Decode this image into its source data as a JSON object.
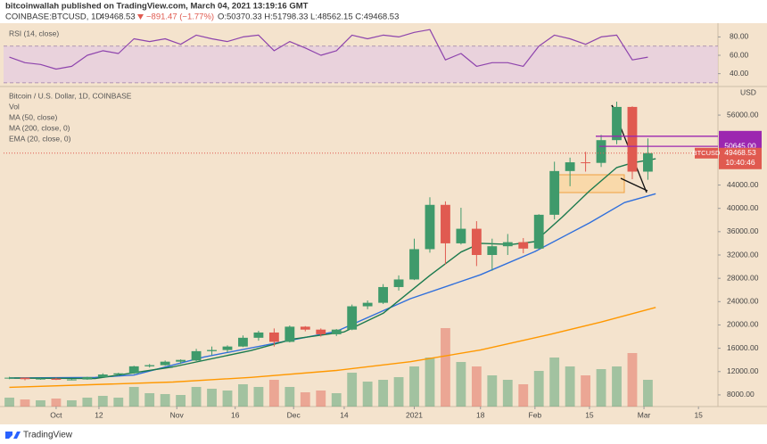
{
  "header": {
    "publisher": "bitcoinwallah published on TradingView.com, March 04, 2021 13:19:16 GMT",
    "symbol": "COINBASE:BTCUSD, 1D",
    "last": "49468.53",
    "change": "−891.47 (−1.77%)",
    "ohlc": "O:50370.33 H:51798.33 L:48562.15 C:49468.53"
  },
  "chart_data": [
    {
      "type": "line",
      "title": "RSI (14, close)",
      "color": "#8e44ad",
      "band": [
        30,
        70
      ],
      "band_color": "#e6cde0",
      "xlim": [
        -13.5,
        170
      ],
      "ylim": [
        27,
        94
      ],
      "yticks": [
        {
          "value": 80,
          "label": "80.00"
        },
        {
          "value": 60,
          "label": "60.00"
        },
        {
          "value": 40,
          "label": "40.00"
        }
      ],
      "x": [
        -12,
        -8,
        -4,
        0,
        4,
        8,
        12,
        16,
        20,
        24,
        28,
        32,
        36,
        40,
        44,
        48,
        52,
        56,
        60,
        64,
        68,
        72,
        76,
        80,
        84,
        88,
        92,
        96,
        100,
        104,
        108,
        112,
        116,
        120,
        124,
        128,
        132,
        136,
        140,
        144,
        148,
        152
      ],
      "values": [
        58,
        52,
        50,
        45,
        48,
        60,
        65,
        62,
        78,
        75,
        78,
        72,
        82,
        78,
        75,
        80,
        82,
        65,
        75,
        68,
        60,
        65,
        82,
        78,
        82,
        80,
        85,
        88,
        55,
        62,
        48,
        52,
        52,
        48,
        70,
        82,
        78,
        72,
        80,
        82,
        55,
        58
      ]
    },
    {
      "type": "candlestick",
      "title": "Bitcoin / U.S. Dollar, 1D, COINBASE",
      "unit": "USD",
      "up_color": "#3f9a6b",
      "down_color": "#e05a50",
      "volume_label": "Vol",
      "vlim": [
        0,
        100
      ],
      "xlim": [
        -13.5,
        170
      ],
      "xticks": [
        {
          "value": 0,
          "label": "Oct"
        },
        {
          "value": 11,
          "label": "12"
        },
        {
          "value": 31,
          "label": "Nov"
        },
        {
          "value": 46,
          "label": "16"
        },
        {
          "value": 61,
          "label": "Dec"
        },
        {
          "value": 74,
          "label": "14"
        },
        {
          "value": 92,
          "label": "2021"
        },
        {
          "value": 109,
          "label": "18"
        },
        {
          "value": 123,
          "label": "Feb"
        },
        {
          "value": 137,
          "label": "15"
        },
        {
          "value": 151,
          "label": "Mar"
        },
        {
          "value": 165,
          "label": "15"
        }
      ],
      "ylim": [
        6000,
        60600
      ],
      "yticks": [
        {
          "value": 8000,
          "label": "8000.00"
        },
        {
          "value": 12000,
          "label": "12000.00"
        },
        {
          "value": 16000,
          "label": "16000.00"
        },
        {
          "value": 20000,
          "label": "20000.00"
        },
        {
          "value": 24000,
          "label": "24000.00"
        },
        {
          "value": 28000,
          "label": "28000.00"
        },
        {
          "value": 32000,
          "label": "32000.00"
        },
        {
          "value": 36000,
          "label": "36000.00"
        },
        {
          "value": 40000,
          "label": "40000.00"
        },
        {
          "value": 44000,
          "label": "44000.00"
        },
        {
          "value": 56000,
          "label": "56000.00"
        }
      ],
      "x": [
        -12,
        -8,
        -4,
        0,
        4,
        8,
        12,
        16,
        20,
        24,
        28,
        32,
        36,
        40,
        44,
        48,
        52,
        56,
        60,
        64,
        68,
        72,
        76,
        80,
        84,
        88,
        92,
        96,
        100,
        104,
        108,
        112,
        116,
        120,
        124,
        128,
        132,
        136,
        140,
        144,
        148,
        152
      ],
      "open": [
        10900,
        10950,
        10700,
        10800,
        10600,
        10650,
        11050,
        11500,
        11700,
        12900,
        13100,
        13700,
        13900,
        15500,
        15700,
        16300,
        17800,
        18700,
        17100,
        19700,
        19200,
        18400,
        19200,
        23200,
        23800,
        26500,
        27800,
        33000,
        40600,
        34000,
        36500,
        32000,
        33500,
        34200,
        33100,
        38900,
        46400,
        47900,
        47800,
        51700,
        57400,
        46300
      ],
      "high": [
        11100,
        11000,
        10900,
        10950,
        10750,
        11100,
        11700,
        11800,
        13000,
        13300,
        13900,
        14100,
        15900,
        16300,
        16500,
        18200,
        19000,
        19400,
        19900,
        19800,
        19400,
        19300,
        23500,
        24200,
        27000,
        28500,
        34800,
        41900,
        41200,
        40100,
        37800,
        34800,
        35600,
        34900,
        39000,
        48000,
        48700,
        49700,
        52600,
        58300,
        57500,
        52000
      ],
      "low": [
        10700,
        10500,
        10600,
        10550,
        10500,
        10600,
        11000,
        11300,
        11600,
        12700,
        13000,
        13300,
        13800,
        14800,
        15300,
        16200,
        17300,
        16300,
        17000,
        18900,
        18000,
        18100,
        19100,
        22700,
        23600,
        25900,
        27700,
        32400,
        30400,
        33800,
        30100,
        29300,
        32000,
        32300,
        33000,
        38100,
        43800,
        46300,
        47100,
        51000,
        45000,
        44900
      ],
      "close": [
        10950,
        10700,
        10800,
        10600,
        10650,
        11050,
        11500,
        11700,
        12900,
        13100,
        13700,
        14000,
        15500,
        15700,
        16300,
        17800,
        18700,
        17100,
        19700,
        19200,
        18400,
        19200,
        23200,
        23800,
        26500,
        27800,
        33000,
        40600,
        34000,
        36500,
        32000,
        33500,
        34200,
        33100,
        38900,
        46400,
        47900,
        47800,
        51700,
        57400,
        46300,
        49468.53
      ],
      "volume": [
        10,
        8,
        7,
        9,
        7,
        10,
        12,
        10,
        22,
        15,
        14,
        13,
        22,
        20,
        18,
        25,
        22,
        30,
        22,
        16,
        18,
        15,
        38,
        28,
        30,
        33,
        45,
        55,
        88,
        50,
        45,
        35,
        30,
        25,
        40,
        55,
        45,
        35,
        42,
        45,
        60,
        30
      ],
      "series": [
        {
          "name": "MA (50, close)",
          "color": "#2f6fdc",
          "x": [
            -12,
            10,
            20,
            38,
            72,
            91,
            109,
            123,
            137,
            146,
            154
          ],
          "values": [
            10900,
            11000,
            11400,
            14500,
            18900,
            24500,
            28600,
            32600,
            37500,
            41000,
            42500
          ]
        },
        {
          "name": "MA (200, close, 0)",
          "color": "#ff9800",
          "x": [
            -12,
            30,
            50,
            72,
            91,
            109,
            127,
            140,
            154
          ],
          "values": [
            9300,
            10200,
            11000,
            12200,
            13700,
            15700,
            18400,
            20500,
            23000
          ]
        },
        {
          "name": "EMA (20, close, 0)",
          "color": "#1b7a4e",
          "x": [
            -12,
            10,
            30,
            50,
            61,
            74,
            84,
            96,
            104,
            109,
            117,
            123,
            130,
            137,
            144,
            148,
            154
          ],
          "values": [
            10900,
            10800,
            12800,
            15600,
            17600,
            18800,
            22000,
            28500,
            32500,
            34000,
            33800,
            34300,
            38500,
            43000,
            47000,
            47800,
            48500
          ]
        }
      ],
      "levels": [
        {
          "value": 52368.99,
          "color": "#9c27b0"
        },
        {
          "value": 50645,
          "label": "50645.00",
          "color": "#9c27b0"
        }
      ],
      "last_price": {
        "name": "BTCUSD",
        "value": 49468.53,
        "countdown": "10:40:46",
        "color": "#e05a50"
      }
    }
  ],
  "footer": {
    "brand": "TradingView"
  }
}
